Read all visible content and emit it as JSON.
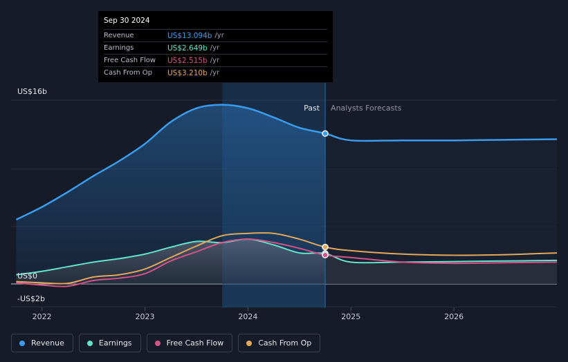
{
  "tooltip": {
    "date": "Sep 30 2024",
    "rows": [
      {
        "label": "Revenue",
        "value": "US$13.094b",
        "unit": "/yr",
        "color": "#3b9cf0"
      },
      {
        "label": "Earnings",
        "value": "US$2.649b",
        "unit": "/yr",
        "color": "#63e5cc"
      },
      {
        "label": "Free Cash Flow",
        "value": "US$2.515b",
        "unit": "/yr",
        "color": "#d6538a"
      },
      {
        "label": "Cash From Op",
        "value": "US$3.210b",
        "unit": "/yr",
        "color": "#e6a95c"
      }
    ]
  },
  "legend": [
    {
      "label": "Revenue",
      "color": "#3b9cf0"
    },
    {
      "label": "Earnings",
      "color": "#63e5cc"
    },
    {
      "label": "Free Cash Flow",
      "color": "#d6538a"
    },
    {
      "label": "Cash From Op",
      "color": "#e6a95c"
    }
  ],
  "chart_data": {
    "type": "area",
    "y_top_label": "US$16b",
    "y_zero_label": "US$0",
    "y_bottom_label": "-US$2b",
    "ylim": [
      -2,
      16
    ],
    "xlim": [
      2021.7,
      2027.0
    ],
    "x_ticks": [
      2022,
      2023,
      2024,
      2025,
      2026
    ],
    "x_tick_labels": [
      "2022",
      "2023",
      "2024",
      "2025",
      "2026"
    ],
    "past_label": "Past",
    "forecast_label": "Analysts Forecasts",
    "divider_x": 2024.75,
    "highlight_range": [
      2023.75,
      2024.75
    ],
    "series": [
      {
        "name": "Revenue",
        "color": "#3b9cf0",
        "x": [
          2021.75,
          2022.0,
          2022.25,
          2022.5,
          2022.75,
          2023.0,
          2023.25,
          2023.5,
          2023.75,
          2024.0,
          2024.25,
          2024.5,
          2024.75,
          2025.0,
          2025.5,
          2026.0,
          2026.5,
          2027.0
        ],
        "y": [
          5.6,
          6.7,
          8.0,
          9.4,
          10.7,
          12.2,
          14.1,
          15.3,
          15.6,
          15.3,
          14.5,
          13.6,
          13.1,
          12.5,
          12.5,
          12.5,
          12.55,
          12.6
        ]
      },
      {
        "name": "Earnings",
        "color": "#63e5cc",
        "x": [
          2021.75,
          2022.0,
          2022.25,
          2022.5,
          2022.75,
          2023.0,
          2023.25,
          2023.5,
          2023.75,
          2024.0,
          2024.25,
          2024.5,
          2024.75,
          2025.0,
          2025.5,
          2026.0,
          2026.5,
          2027.0
        ],
        "y": [
          0.8,
          1.1,
          1.5,
          1.9,
          2.2,
          2.6,
          3.2,
          3.7,
          3.6,
          3.9,
          3.4,
          2.7,
          2.65,
          1.9,
          1.9,
          1.95,
          2.0,
          2.05
        ]
      },
      {
        "name": "Free Cash Flow",
        "color": "#d6538a",
        "x": [
          2021.75,
          2022.0,
          2022.25,
          2022.5,
          2022.75,
          2023.0,
          2023.25,
          2023.5,
          2023.75,
          2024.0,
          2024.25,
          2024.5,
          2024.75,
          2025.0,
          2025.5,
          2026.0,
          2026.5,
          2027.0
        ],
        "y": [
          0.1,
          -0.1,
          -0.2,
          0.3,
          0.5,
          0.9,
          2.0,
          2.8,
          3.6,
          3.9,
          3.6,
          3.1,
          2.515,
          2.3,
          1.9,
          1.8,
          1.85,
          1.9
        ]
      },
      {
        "name": "Cash From Op",
        "color": "#e6a95c",
        "x": [
          2021.75,
          2022.0,
          2022.25,
          2022.5,
          2022.75,
          2023.0,
          2023.25,
          2023.5,
          2023.75,
          2024.0,
          2024.25,
          2024.5,
          2024.75,
          2025.0,
          2025.5,
          2026.0,
          2026.5,
          2027.0
        ],
        "y": [
          0.2,
          0.1,
          0.05,
          0.6,
          0.8,
          1.3,
          2.3,
          3.3,
          4.2,
          4.4,
          4.4,
          3.9,
          3.21,
          2.9,
          2.6,
          2.5,
          2.55,
          2.7
        ]
      }
    ],
    "markers": [
      {
        "series": "Revenue",
        "x": 2024.75,
        "y": 13.094
      },
      {
        "series": "Earnings",
        "x": 2024.75,
        "y": 2.649
      },
      {
        "series": "Free Cash Flow",
        "x": 2024.75,
        "y": 2.515
      },
      {
        "series": "Cash From Op",
        "x": 2024.75,
        "y": 3.21
      }
    ]
  }
}
